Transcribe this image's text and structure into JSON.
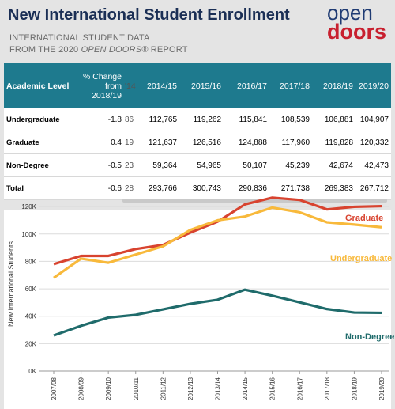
{
  "header": {
    "title": "New International Student Enrollment",
    "subtitle_line1": "INTERNATIONAL STUDENT DATA",
    "subtitle_line2": [
      "FROM THE 2020",
      "OPEN DOORS®",
      "REPORT"
    ],
    "logo": [
      "open",
      "doors"
    ]
  },
  "table": {
    "headers": [
      "Academic Level",
      "% Change from 2018/19",
      "'14",
      "2014/15",
      "2015/16",
      "2016/17",
      "2017/18",
      "2018/19",
      "2019/20"
    ],
    "rows": [
      [
        "Undergraduate",
        "-1.8",
        "86",
        "112,765",
        "119,262",
        "115,841",
        "108,539",
        "106,881",
        "104,907"
      ],
      [
        "Graduate",
        "0.4",
        "19",
        "121,637",
        "126,516",
        "124,888",
        "117,960",
        "119,828",
        "120,332"
      ],
      [
        "Non-Degree",
        "-0.5",
        "23",
        "59,364",
        "54,965",
        "50,107",
        "45,239",
        "42,674",
        "42,473"
      ],
      [
        "Total",
        "-0.6",
        "28",
        "293,766",
        "300,743",
        "290,836",
        "271,738",
        "269,383",
        "267,712"
      ]
    ]
  },
  "chart_data": {
    "type": "line",
    "y_label": "New International Students",
    "categories": [
      "2007/08",
      "2008/09",
      "2009/10",
      "2010/11",
      "2011/12",
      "2012/13",
      "2013/14",
      "2014/15",
      "2015/16",
      "2016/17",
      "2017/18",
      "2018/19",
      "2019/20"
    ],
    "series": [
      {
        "name": "Graduate",
        "color": "#d8432f",
        "values": [
          78000,
          84000,
          84000,
          89000,
          92000,
          101000,
          109000,
          121637,
          126516,
          124888,
          117960,
          119828,
          120332
        ]
      },
      {
        "name": "Undergraduate",
        "color": "#f8b93b",
        "values": [
          68000,
          82000,
          79000,
          85000,
          91000,
          103000,
          110000,
          112765,
          119262,
          115841,
          108539,
          106881,
          104907
        ]
      },
      {
        "name": "Non-Degree",
        "color": "#1f6b6b",
        "values": [
          26000,
          33000,
          39000,
          41000,
          45000,
          49000,
          52000,
          59364,
          54965,
          50107,
          45239,
          42674,
          42473
        ]
      }
    ],
    "ylim": [
      0,
      127000
    ],
    "yticks": [
      {
        "value": 0,
        "label": "0K"
      },
      {
        "value": 20000,
        "label": "20K"
      },
      {
        "value": 40000,
        "label": "40K"
      },
      {
        "value": 60000,
        "label": "60K"
      },
      {
        "value": 80000,
        "label": "80K"
      },
      {
        "value": 100000,
        "label": "100K"
      },
      {
        "value": 120000,
        "label": "120K"
      }
    ],
    "grid": true
  }
}
